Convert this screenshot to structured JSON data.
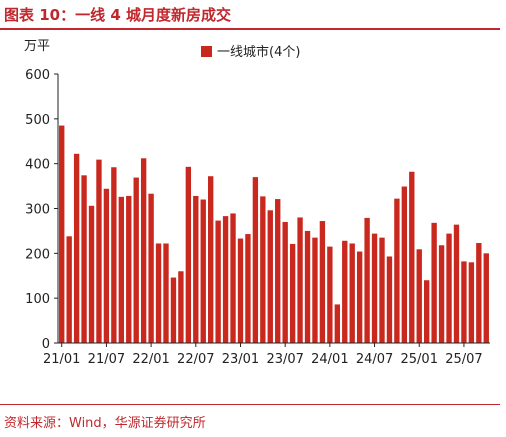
{
  "header": {
    "title": "图表 10：一线 4 城月度新房成交"
  },
  "footer": {
    "source": "资料来源：Wind，华源证券研究所"
  },
  "colors": {
    "accent": "#c0282d",
    "bar": "#c8281e"
  },
  "chart_data": {
    "type": "bar",
    "title": "",
    "ylabel": "万平",
    "xlabel": "",
    "ylim": [
      0,
      600
    ],
    "yticks": [
      0,
      100,
      200,
      300,
      400,
      500,
      600
    ],
    "grid": false,
    "legend_position": "top",
    "tick_labels": [
      "21/01",
      "21/07",
      "22/01",
      "22/07",
      "23/01",
      "23/07",
      "24/01",
      "24/07",
      "25/01",
      "25/07"
    ],
    "series": [
      {
        "name": "一线城市(4个)",
        "values": [
          485,
          238,
          422,
          374,
          306,
          409,
          344,
          392,
          326,
          328,
          369,
          412,
          333,
          222,
          222,
          146,
          160,
          393,
          328,
          320,
          372,
          273,
          283,
          289,
          233,
          243,
          370,
          327,
          296,
          321,
          270,
          221,
          280,
          250,
          235,
          272,
          215,
          86,
          228,
          222,
          204,
          279,
          244,
          235,
          193,
          322,
          349,
          382,
          209,
          140,
          268,
          218,
          244,
          264,
          182,
          180,
          223,
          200
        ]
      }
    ]
  }
}
